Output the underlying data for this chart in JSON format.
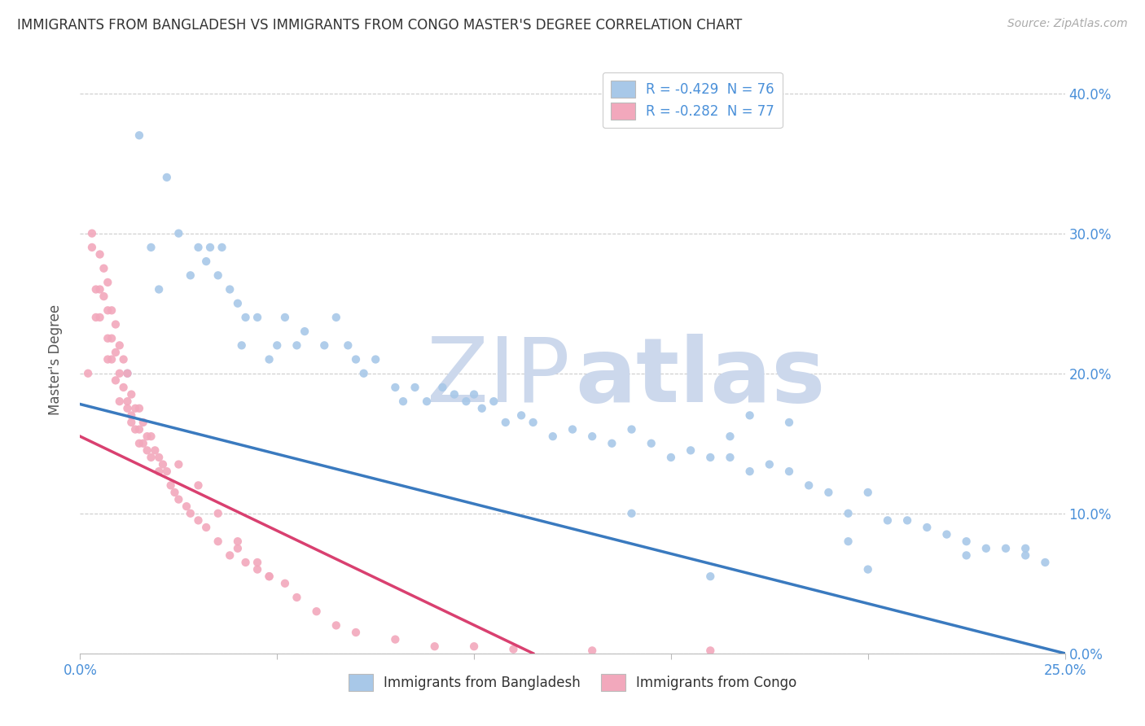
{
  "title": "IMMIGRANTS FROM BANGLADESH VS IMMIGRANTS FROM CONGO MASTER'S DEGREE CORRELATION CHART",
  "source": "Source: ZipAtlas.com",
  "ylabel": "Master's Degree",
  "legend_entry1": "R = -0.429  N = 76",
  "legend_entry2": "R = -0.282  N = 77",
  "legend_label1": "Immigrants from Bangladesh",
  "legend_label2": "Immigrants from Congo",
  "color_bangladesh": "#a8c8e8",
  "color_congo": "#f2a8bc",
  "line_color_bangladesh": "#3a7abf",
  "line_color_congo": "#d94070",
  "watermark_zip_color": "#ccd8ec",
  "watermark_atlas_color": "#ccd8ec",
  "xlim": [
    0.0,
    0.25
  ],
  "ylim": [
    0.0,
    0.42
  ],
  "bg_color": "#ffffff",
  "grid_color": "#cccccc",
  "bang_line_x0": 0.0,
  "bang_line_y0": 0.178,
  "bang_line_x1": 0.25,
  "bang_line_y1": 0.0,
  "congo_line_x0": 0.0,
  "congo_line_y0": 0.155,
  "congo_line_x1": 0.115,
  "congo_line_y1": 0.0,
  "scatter_bangladesh_x": [
    0.012,
    0.015,
    0.022,
    0.025,
    0.028,
    0.02,
    0.018,
    0.03,
    0.032,
    0.035,
    0.033,
    0.038,
    0.036,
    0.04,
    0.042,
    0.041,
    0.045,
    0.048,
    0.05,
    0.052,
    0.055,
    0.057,
    0.062,
    0.065,
    0.068,
    0.07,
    0.072,
    0.075,
    0.08,
    0.082,
    0.085,
    0.088,
    0.092,
    0.095,
    0.098,
    0.1,
    0.102,
    0.105,
    0.108,
    0.112,
    0.115,
    0.12,
    0.125,
    0.13,
    0.135,
    0.14,
    0.145,
    0.15,
    0.155,
    0.16,
    0.165,
    0.17,
    0.175,
    0.18,
    0.185,
    0.19,
    0.195,
    0.2,
    0.205,
    0.21,
    0.215,
    0.22,
    0.225,
    0.23,
    0.235,
    0.24,
    0.245,
    0.165,
    0.195,
    0.225,
    0.24,
    0.17,
    0.18,
    0.14,
    0.16,
    0.2
  ],
  "scatter_bangladesh_y": [
    0.2,
    0.37,
    0.34,
    0.3,
    0.27,
    0.26,
    0.29,
    0.29,
    0.28,
    0.27,
    0.29,
    0.26,
    0.29,
    0.25,
    0.24,
    0.22,
    0.24,
    0.21,
    0.22,
    0.24,
    0.22,
    0.23,
    0.22,
    0.24,
    0.22,
    0.21,
    0.2,
    0.21,
    0.19,
    0.18,
    0.19,
    0.18,
    0.19,
    0.185,
    0.18,
    0.185,
    0.175,
    0.18,
    0.165,
    0.17,
    0.165,
    0.155,
    0.16,
    0.155,
    0.15,
    0.16,
    0.15,
    0.14,
    0.145,
    0.14,
    0.14,
    0.13,
    0.135,
    0.13,
    0.12,
    0.115,
    0.1,
    0.115,
    0.095,
    0.095,
    0.09,
    0.085,
    0.08,
    0.075,
    0.075,
    0.075,
    0.065,
    0.155,
    0.08,
    0.07,
    0.07,
    0.17,
    0.165,
    0.1,
    0.055,
    0.06
  ],
  "scatter_congo_x": [
    0.002,
    0.003,
    0.003,
    0.004,
    0.004,
    0.005,
    0.005,
    0.005,
    0.006,
    0.006,
    0.007,
    0.007,
    0.007,
    0.007,
    0.008,
    0.008,
    0.008,
    0.009,
    0.009,
    0.009,
    0.01,
    0.01,
    0.01,
    0.011,
    0.011,
    0.012,
    0.012,
    0.012,
    0.013,
    0.013,
    0.013,
    0.014,
    0.014,
    0.015,
    0.015,
    0.015,
    0.016,
    0.016,
    0.017,
    0.017,
    0.018,
    0.018,
    0.019,
    0.02,
    0.02,
    0.021,
    0.022,
    0.023,
    0.024,
    0.025,
    0.027,
    0.028,
    0.03,
    0.032,
    0.035,
    0.038,
    0.04,
    0.042,
    0.045,
    0.048,
    0.025,
    0.03,
    0.035,
    0.04,
    0.045,
    0.048,
    0.052,
    0.055,
    0.06,
    0.065,
    0.07,
    0.08,
    0.09,
    0.1,
    0.11,
    0.13,
    0.16
  ],
  "scatter_congo_y": [
    0.2,
    0.29,
    0.3,
    0.26,
    0.24,
    0.285,
    0.26,
    0.24,
    0.275,
    0.255,
    0.265,
    0.245,
    0.225,
    0.21,
    0.245,
    0.225,
    0.21,
    0.235,
    0.215,
    0.195,
    0.22,
    0.2,
    0.18,
    0.21,
    0.19,
    0.2,
    0.18,
    0.175,
    0.185,
    0.17,
    0.165,
    0.175,
    0.16,
    0.175,
    0.16,
    0.15,
    0.165,
    0.15,
    0.155,
    0.145,
    0.155,
    0.14,
    0.145,
    0.14,
    0.13,
    0.135,
    0.13,
    0.12,
    0.115,
    0.11,
    0.105,
    0.1,
    0.095,
    0.09,
    0.08,
    0.07,
    0.075,
    0.065,
    0.06,
    0.055,
    0.135,
    0.12,
    0.1,
    0.08,
    0.065,
    0.055,
    0.05,
    0.04,
    0.03,
    0.02,
    0.015,
    0.01,
    0.005,
    0.005,
    0.003,
    0.002,
    0.002
  ]
}
